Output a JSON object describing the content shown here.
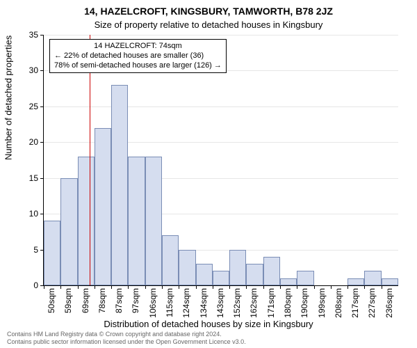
{
  "meta": {
    "title_line1": "14, HAZELCROFT, KINGSBURY, TAMWORTH, B78 2JZ",
    "title_line2": "Size of property relative to detached houses in Kingsbury",
    "xlabel": "Distribution of detached houses by size in Kingsbury",
    "ylabel": "Number of detached properties",
    "footer_line1": "Contains HM Land Registry data © Crown copyright and database right 2024.",
    "footer_line2": "Contains public sector information licensed under the Open Government Licence v3.0."
  },
  "chart": {
    "type": "histogram",
    "ylim": [
      0,
      35
    ],
    "ytick_step": 5,
    "ytick_labels": [
      "0",
      "5",
      "10",
      "15",
      "20",
      "25",
      "30",
      "35"
    ],
    "xtick_labels": [
      "50sqm",
      "59sqm",
      "69sqm",
      "78sqm",
      "87sqm",
      "97sqm",
      "106sqm",
      "115sqm",
      "124sqm",
      "134sqm",
      "143sqm",
      "152sqm",
      "162sqm",
      "171sqm",
      "180sqm",
      "190sqm",
      "199sqm",
      "208sqm",
      "217sqm",
      "227sqm",
      "236sqm"
    ],
    "x_min": 50,
    "x_max": 236,
    "values": [
      9,
      15,
      18,
      22,
      28,
      18,
      18,
      7,
      5,
      3,
      2,
      5,
      3,
      4,
      1,
      2,
      0,
      0,
      1,
      2,
      1
    ],
    "bar_fill": "#d5ddef",
    "bar_border": "#7a8db5",
    "grid_color": "#e6e6e6",
    "bg": "#ffffff",
    "marker_x_sqm": 74,
    "marker_color": "#cc0000",
    "callout": {
      "line1": "14 HAZELCROFT: 74sqm",
      "line2": "← 22% of detached houses are smaller (36)",
      "line3": "78% of semi-detached houses are larger (126) →"
    },
    "fontsize_title": 14,
    "fontsize_axis": 13,
    "fontsize_tick": 12,
    "fontsize_callout": 11
  }
}
